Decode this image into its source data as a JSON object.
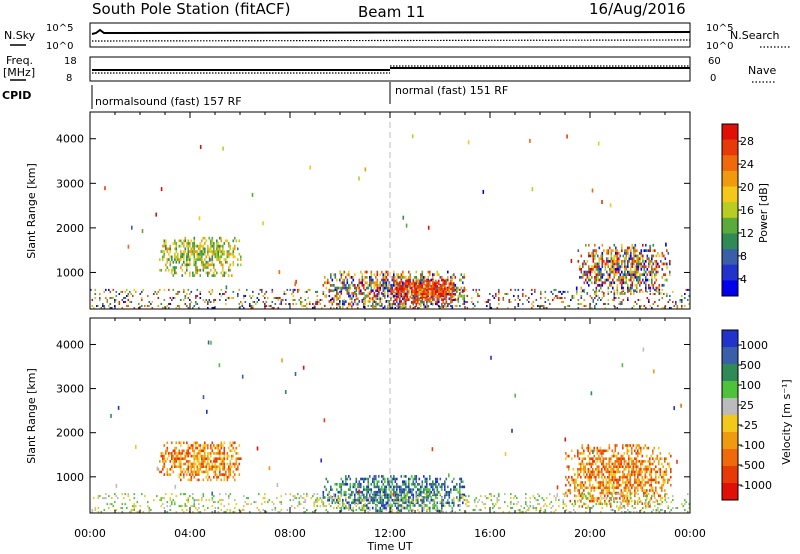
{
  "header": {
    "station": "South Pole Station (fitACF)",
    "beam": "Beam 11",
    "date": "16/Aug/2016"
  },
  "status_panels": {
    "nsky_label": "N.Sky",
    "nsearch_label": "N.Search",
    "freq_label": "Freq.",
    "freq_unit": "[MHz]",
    "nave_label": "Nave",
    "cpid_label": "CPID",
    "nsky_ticks": [
      "10^5",
      "10^0"
    ],
    "nsearch_ticks": [
      "10^5",
      "10^0"
    ],
    "freq_ticks": [
      "18",
      "8"
    ],
    "nave_ticks": [
      "60",
      "0"
    ],
    "cpid_segments": [
      {
        "label": "normalsound (fast) 157 RF",
        "start_hour": 0
      },
      {
        "label": "normal (fast) 151 RF",
        "start_hour": 12
      }
    ]
  },
  "chart_data": [
    {
      "type": "heatmap",
      "name": "power",
      "xlabel": "",
      "ylabel": "Slant Range [km]",
      "xlim": [
        0,
        24
      ],
      "ylim": [
        180,
        4600
      ],
      "yticks": [
        1000,
        2000,
        3000,
        4000
      ],
      "colorbar": {
        "label": "Power [dB]",
        "ticks": [
          "28",
          "24",
          "20",
          "16",
          "12",
          "8",
          "4"
        ],
        "colors": [
          "#0000ee",
          "#2233cc",
          "#3a5fa8",
          "#2f8a55",
          "#5aaa3c",
          "#b8cc22",
          "#f2c81a",
          "#f09a10",
          "#ee6a0a",
          "#e83a08",
          "#e01008"
        ]
      },
      "regions": [
        {
          "x": [
            2.7,
            6.0
          ],
          "y": [
            900,
            1800
          ],
          "level": "mid"
        },
        {
          "x": [
            9.3,
            15.0
          ],
          "y": [
            200,
            1000
          ],
          "level": "mixed"
        },
        {
          "x": [
            12.0,
            14.6
          ],
          "y": [
            300,
            800
          ],
          "level": "high"
        },
        {
          "x": [
            19.5,
            23.2
          ],
          "y": [
            500,
            1600
          ],
          "level": "mixed"
        },
        {
          "x": [
            0,
            24
          ],
          "y": [
            180,
            600
          ],
          "level": "sparse"
        }
      ]
    },
    {
      "type": "heatmap",
      "name": "velocity",
      "xlabel": "Time UT",
      "ylabel": "Slant Range [km]",
      "xlim": [
        0,
        24
      ],
      "ylim": [
        180,
        4600
      ],
      "xticks": [
        "00:00",
        "04:00",
        "08:00",
        "12:00",
        "16:00",
        "20:00",
        "00:00"
      ],
      "yticks": [
        1000,
        2000,
        3000,
        4000
      ],
      "colorbar": {
        "label": "Velocity [m s⁻¹]",
        "ticks": [
          "1000",
          "500",
          "100",
          "25",
          "-25",
          "-100",
          "-500",
          "-1000"
        ],
        "colors": [
          "#2233cc",
          "#3a5fa8",
          "#2f8a55",
          "#4ec23a",
          "#bbbbbb",
          "#f2c81a",
          "#f09a10",
          "#ee6a0a",
          "#e83a08",
          "#e01008"
        ]
      },
      "regions": [
        {
          "x": [
            2.7,
            6.0
          ],
          "y": [
            900,
            1800
          ],
          "level": "negative"
        },
        {
          "x": [
            9.3,
            15.0
          ],
          "y": [
            200,
            1000
          ],
          "level": "positive"
        },
        {
          "x": [
            19.0,
            23.2
          ],
          "y": [
            300,
            1700
          ],
          "level": "negative"
        },
        {
          "x": [
            0,
            24
          ],
          "y": [
            180,
            600
          ],
          "level": "sparse"
        }
      ]
    }
  ]
}
